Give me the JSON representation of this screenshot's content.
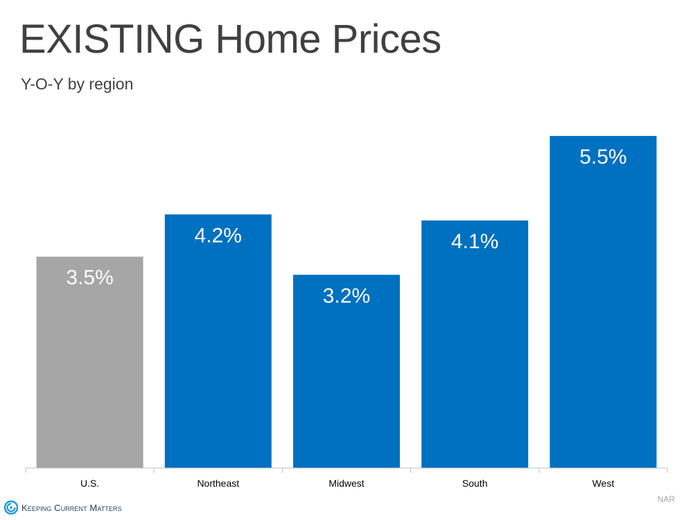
{
  "title": "EXISTING Home Prices",
  "subtitle": "Y-O-Y by region",
  "source": "NAR",
  "brand": {
    "name": "Keeping Current Matters",
    "logo_icon": "kcm-swirl-icon"
  },
  "colors": {
    "us_bar": "#a6a6a6",
    "region_bar": "#0070c0",
    "label": "#ffffff",
    "axis": "#bfbfbf"
  },
  "chart_data": {
    "type": "bar",
    "title": "EXISTING Home Prices",
    "subtitle": "Y-O-Y by region",
    "categories": [
      "U.S.",
      "Northeast",
      "Midwest",
      "South",
      "West"
    ],
    "values": [
      3.5,
      4.2,
      3.2,
      4.1,
      5.5
    ],
    "data_labels": [
      "3.5%",
      "4.2%",
      "3.2%",
      "4.1%",
      "5.5%"
    ],
    "ylim": [
      0,
      6.5
    ],
    "grid": false,
    "legend": "none"
  }
}
